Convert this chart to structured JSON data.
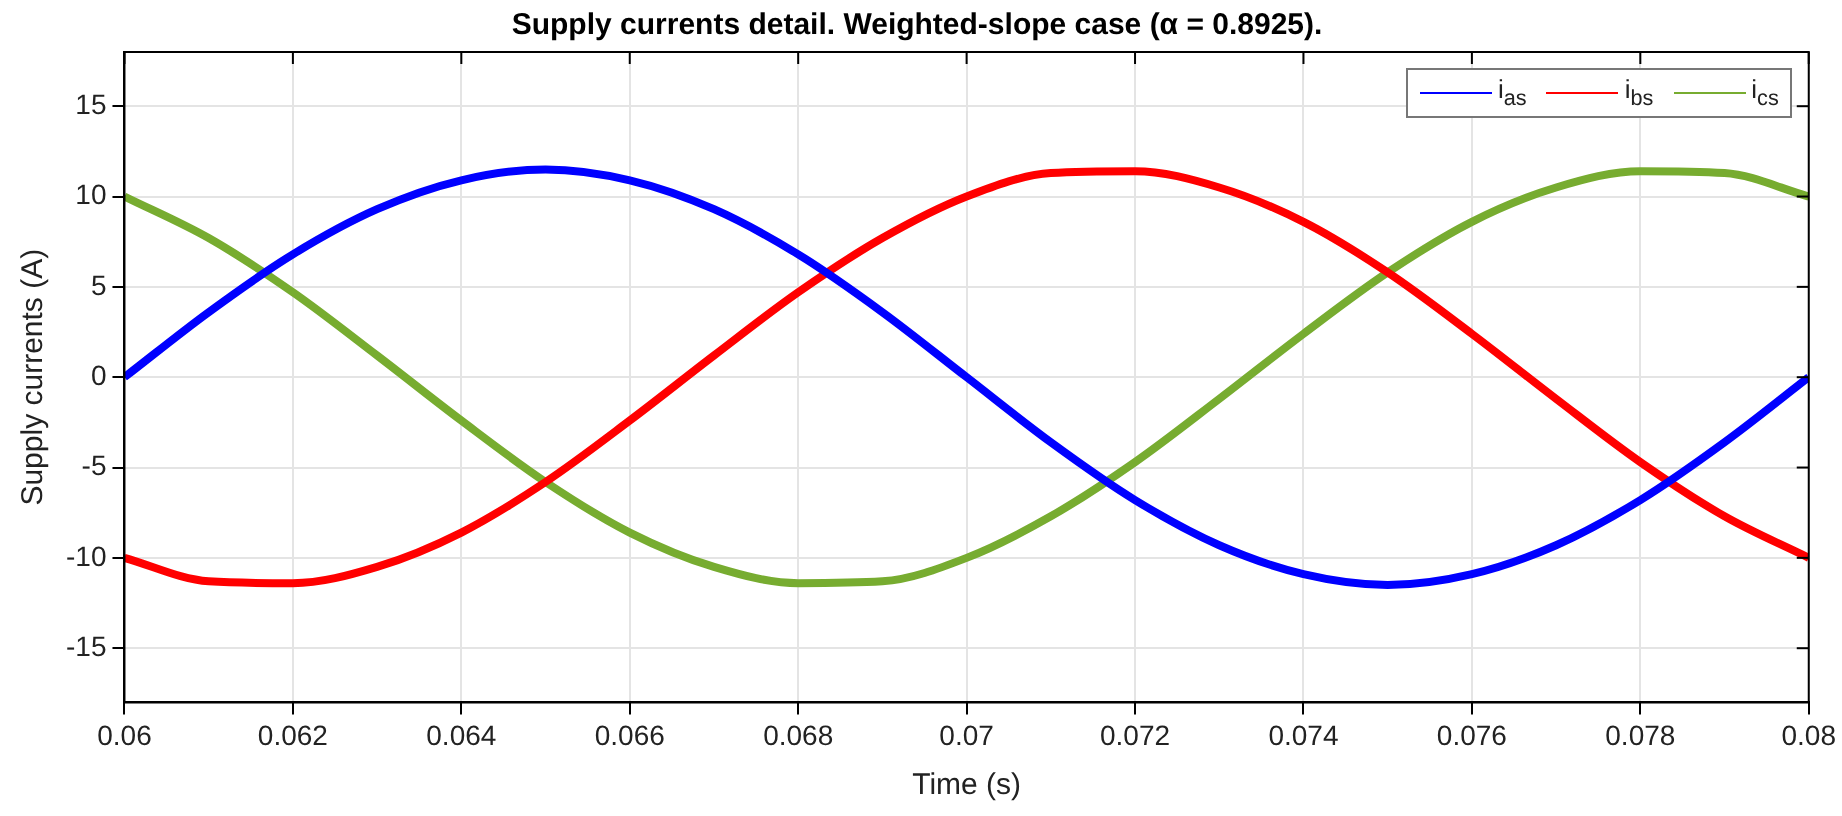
{
  "chart_data": {
    "type": "line",
    "title": "Supply currents detail. Weighted-slope case (α = 0.8925).",
    "xlabel": "Time (s)",
    "ylabel": "Supply currents (A)",
    "x": [
      0.06,
      0.061,
      0.062,
      0.063,
      0.064,
      0.065,
      0.066,
      0.067,
      0.068,
      0.069,
      0.07,
      0.071,
      0.072,
      0.073,
      0.074,
      0.075,
      0.076,
      0.077,
      0.078,
      0.079,
      0.08
    ],
    "series": [
      {
        "name": "i$_{as}$",
        "color": "#0000ff",
        "values": [
          0,
          3.6,
          6.8,
          9.3,
          10.9,
          11.5,
          10.9,
          9.3,
          6.8,
          3.6,
          0,
          -3.6,
          -6.8,
          -9.3,
          -10.9,
          -11.5,
          -10.9,
          -9.3,
          -6.8,
          -3.6,
          0
        ]
      },
      {
        "name": "i$_{bs}$",
        "color": "#ff0000",
        "values": [
          -10,
          -11.3,
          -11.4,
          -10.5,
          -8.6,
          -5.8,
          -2.4,
          1.2,
          4.7,
          7.7,
          10,
          11.3,
          11.4,
          10.5,
          8.6,
          5.8,
          2.4,
          -1.2,
          -4.7,
          -7.7,
          -10
        ]
      },
      {
        "name": "i$_{cs}$",
        "color": "#77ac30",
        "values": [
          10,
          7.7,
          4.7,
          1.2,
          -2.4,
          -5.8,
          -8.6,
          -10.5,
          -11.4,
          -11.3,
          -10,
          -7.7,
          -4.7,
          -1.2,
          2.4,
          5.8,
          8.6,
          10.5,
          11.4,
          11.3,
          10
        ]
      }
    ],
    "xlim": [
      0.06,
      0.08
    ],
    "xticks": [
      0.06,
      0.062,
      0.064,
      0.066,
      0.068,
      0.07,
      0.072,
      0.074,
      0.076,
      0.078,
      0.08
    ],
    "ylim": [
      -18,
      18
    ],
    "yticks": [
      -15,
      -10,
      -5,
      0,
      5,
      10,
      15
    ],
    "grid": true,
    "legend": "top right",
    "marker": "none",
    "line_style": "solid"
  }
}
